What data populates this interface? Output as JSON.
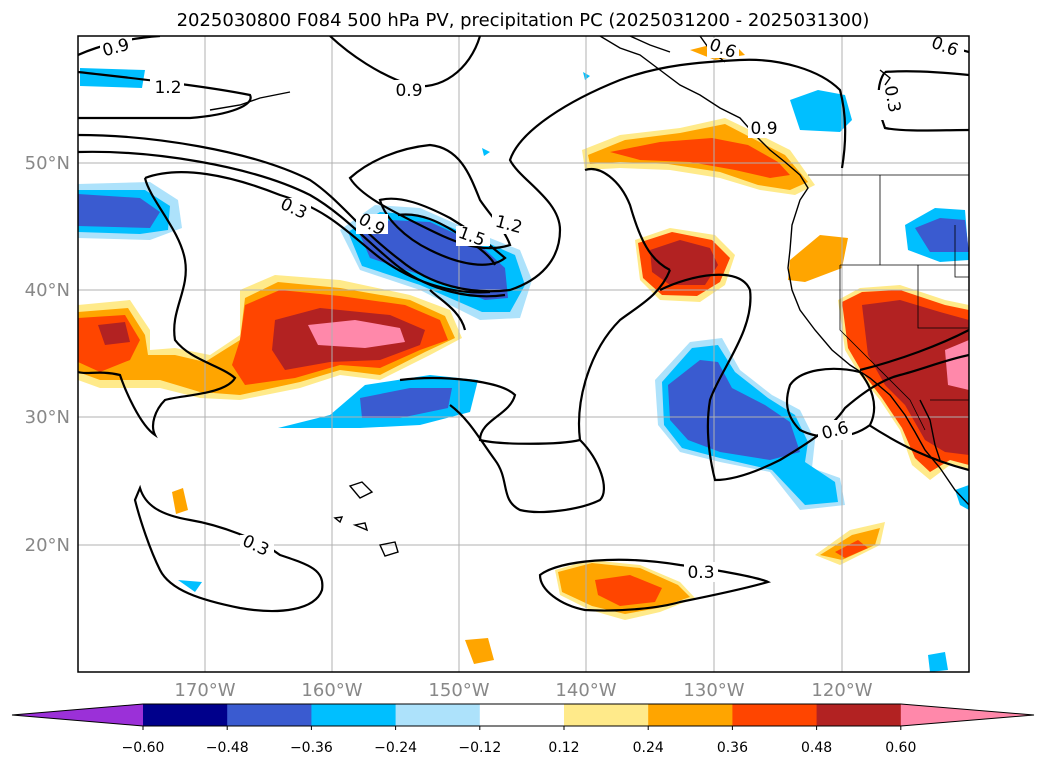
{
  "title": "2025030800 F084 500 hPa PV, precipitation PC (2025031200 - 2025031300)",
  "latitude_labels": [
    "50°N",
    "40°N",
    "30°N",
    "20°N"
  ],
  "longitude_labels": [
    "170°W",
    "160°W",
    "150°W",
    "140°W",
    "130°W",
    "120°W"
  ],
  "colorbar": {
    "tick_labels": [
      "−0.60",
      "−0.48",
      "−0.36",
      "−0.24",
      "−0.12",
      "0.12",
      "0.24",
      "0.36",
      "0.48",
      "0.60"
    ],
    "colors": [
      "#9b30d8",
      "#00008b",
      "#3a5bd0",
      "#00bfff",
      "#ade2fb",
      "#ffffff",
      "#ffea8a",
      "#ffa500",
      "#ff4500",
      "#b22222",
      "#ff88aa"
    ]
  },
  "contour_labels": {
    "c1": "0.9",
    "c2": "1.2",
    "c3": "0.9",
    "c4": "0.6",
    "c5": "0.6",
    "c6": "0.3",
    "c7": "0.9",
    "c8": "0.3",
    "c9": "0.9",
    "c10": "1.5",
    "c11": "1.2",
    "c12": "0.6",
    "c13": "0.3",
    "c14": "0.3"
  }
}
